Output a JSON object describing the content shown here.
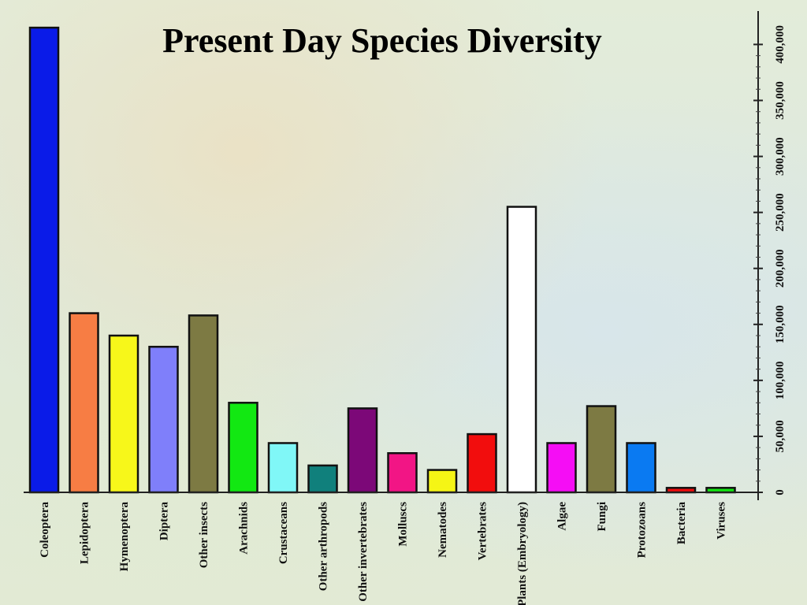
{
  "chart_data": {
    "type": "bar",
    "title": "Present Day Species Diversity",
    "xlabel": "",
    "ylabel": "",
    "ylim": [
      0,
      420000
    ],
    "yticks": [
      0,
      50000,
      100000,
      150000,
      200000,
      250000,
      300000,
      350000,
      400000
    ],
    "ytick_labels": [
      "0",
      "50,000",
      "100,000",
      "150,000",
      "200,000",
      "250,000",
      "300,000",
      "350,000",
      "400,000"
    ],
    "categories": [
      "Coleoptera",
      "Lepidoptera",
      "Hymenoptera",
      "Diptera",
      "Other insects",
      "Arachnids",
      "Crustaceans",
      "Other arthropods",
      "Other invertebrates",
      "Molluscs",
      "Nematodes",
      "Vertebrates",
      "Plants (Embryology)",
      "Algae",
      "Fungi",
      "Protozoans",
      "Bacteria",
      "Viruses"
    ],
    "values": [
      415000,
      160000,
      140000,
      130000,
      158000,
      80000,
      44000,
      24000,
      75000,
      35000,
      20000,
      52000,
      255000,
      44000,
      77000,
      44000,
      4000,
      4000
    ],
    "colors": [
      "#0a1be8",
      "#f77d44",
      "#f7f71a",
      "#7f7ffa",
      "#7d7a43",
      "#12e812",
      "#80f7f7",
      "#10807c",
      "#7c0878",
      "#f21585",
      "#f5f515",
      "#f20d0d",
      "#ffffff",
      "#f50df5",
      "#7d7a43",
      "#0a7af2",
      "#f20d0d",
      "#12e812"
    ],
    "axis_position": "right",
    "grid": false,
    "legend": "none"
  }
}
